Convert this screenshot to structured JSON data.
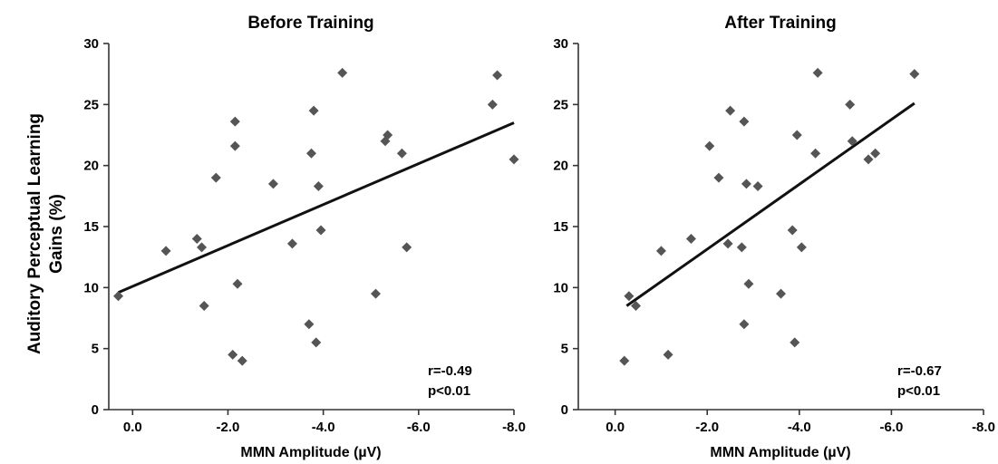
{
  "shared_ylabel_line1": "Auditory Perceptual Learning",
  "shared_ylabel_line2": "Gains (%)",
  "chart_data": [
    {
      "type": "scatter",
      "title": "Before Training",
      "xlabel": "MMN Amplitude (µV)",
      "ylabel": "Auditory Perceptual Learning Gains (%)",
      "xlim": [
        0.5,
        -8.0
      ],
      "ylim": [
        0,
        30
      ],
      "xticks": [
        "0.0",
        "-2.0",
        "-4.0",
        "-6.0",
        "-8.0"
      ],
      "xtick_values": [
        0,
        -2,
        -4,
        -6,
        -8
      ],
      "yticks": [
        "0",
        "5",
        "10",
        "15",
        "20",
        "25",
        "30"
      ],
      "ytick_values": [
        0,
        5,
        10,
        15,
        20,
        25,
        30
      ],
      "annotation_r": "r=-0.49",
      "annotation_p": "p<0.01",
      "points": [
        {
          "x": 0.3,
          "y": 9.3
        },
        {
          "x": -0.7,
          "y": 13.0
        },
        {
          "x": -1.35,
          "y": 14.0
        },
        {
          "x": -1.45,
          "y": 13.3
        },
        {
          "x": -1.5,
          "y": 8.5
        },
        {
          "x": -1.75,
          "y": 19.0
        },
        {
          "x": -2.1,
          "y": 4.5
        },
        {
          "x": -2.15,
          "y": 23.6
        },
        {
          "x": -2.15,
          "y": 21.6
        },
        {
          "x": -2.2,
          "y": 10.3
        },
        {
          "x": -2.3,
          "y": 4.0
        },
        {
          "x": -2.95,
          "y": 18.5
        },
        {
          "x": -3.35,
          "y": 13.6
        },
        {
          "x": -3.7,
          "y": 7.0
        },
        {
          "x": -3.75,
          "y": 21.0
        },
        {
          "x": -3.8,
          "y": 24.5
        },
        {
          "x": -3.85,
          "y": 5.5
        },
        {
          "x": -3.9,
          "y": 18.3
        },
        {
          "x": -3.95,
          "y": 14.7
        },
        {
          "x": -4.4,
          "y": 27.6
        },
        {
          "x": -5.1,
          "y": 9.5
        },
        {
          "x": -5.3,
          "y": 22.0
        },
        {
          "x": -5.35,
          "y": 22.5
        },
        {
          "x": -5.65,
          "y": 21.0
        },
        {
          "x": -5.75,
          "y": 13.3
        },
        {
          "x": -7.55,
          "y": 25.0
        },
        {
          "x": -7.65,
          "y": 27.4
        },
        {
          "x": -8.0,
          "y": 20.5
        }
      ],
      "fit": {
        "x": [
          0.3,
          -8.0
        ],
        "y": [
          9.6,
          23.5
        ]
      }
    },
    {
      "type": "scatter",
      "title": "After Training",
      "xlabel": "MMN Amplitude (µV)",
      "ylabel": "Auditory Perceptual Learning Gains (%)",
      "xlim": [
        0.8,
        -8.0
      ],
      "ylim": [
        0,
        30
      ],
      "xticks": [
        "0.0",
        "-2.0",
        "-4.0",
        "-6.0",
        "-8.0"
      ],
      "xtick_values": [
        0,
        -2,
        -4,
        -6,
        -8
      ],
      "yticks": [
        "0",
        "5",
        "10",
        "15",
        "20",
        "25",
        "30"
      ],
      "ytick_values": [
        0,
        5,
        10,
        15,
        20,
        25,
        30
      ],
      "annotation_r": "r=-0.67",
      "annotation_p": "p<0.01",
      "points": [
        {
          "x": -0.2,
          "y": 4.0
        },
        {
          "x": -0.3,
          "y": 9.3
        },
        {
          "x": -0.45,
          "y": 8.5
        },
        {
          "x": -1.0,
          "y": 13.0
        },
        {
          "x": -1.15,
          "y": 4.5
        },
        {
          "x": -1.65,
          "y": 14.0
        },
        {
          "x": -2.05,
          "y": 21.6
        },
        {
          "x": -2.25,
          "y": 19.0
        },
        {
          "x": -2.45,
          "y": 13.6
        },
        {
          "x": -2.5,
          "y": 24.5
        },
        {
          "x": -2.75,
          "y": 13.3
        },
        {
          "x": -2.8,
          "y": 23.6
        },
        {
          "x": -2.8,
          "y": 7.0
        },
        {
          "x": -2.85,
          "y": 18.5
        },
        {
          "x": -2.9,
          "y": 10.3
        },
        {
          "x": -3.1,
          "y": 18.3
        },
        {
          "x": -3.6,
          "y": 9.5
        },
        {
          "x": -3.85,
          "y": 14.7
        },
        {
          "x": -3.9,
          "y": 5.5
        },
        {
          "x": -3.95,
          "y": 22.5
        },
        {
          "x": -4.05,
          "y": 13.3
        },
        {
          "x": -4.35,
          "y": 21.0
        },
        {
          "x": -4.4,
          "y": 27.6
        },
        {
          "x": -5.1,
          "y": 25.0
        },
        {
          "x": -5.15,
          "y": 22.0
        },
        {
          "x": -5.5,
          "y": 20.5
        },
        {
          "x": -5.65,
          "y": 21.0
        },
        {
          "x": -6.5,
          "y": 27.5
        }
      ],
      "fit": {
        "x": [
          -0.25,
          -6.5
        ],
        "y": [
          8.5,
          25.1
        ]
      }
    }
  ]
}
